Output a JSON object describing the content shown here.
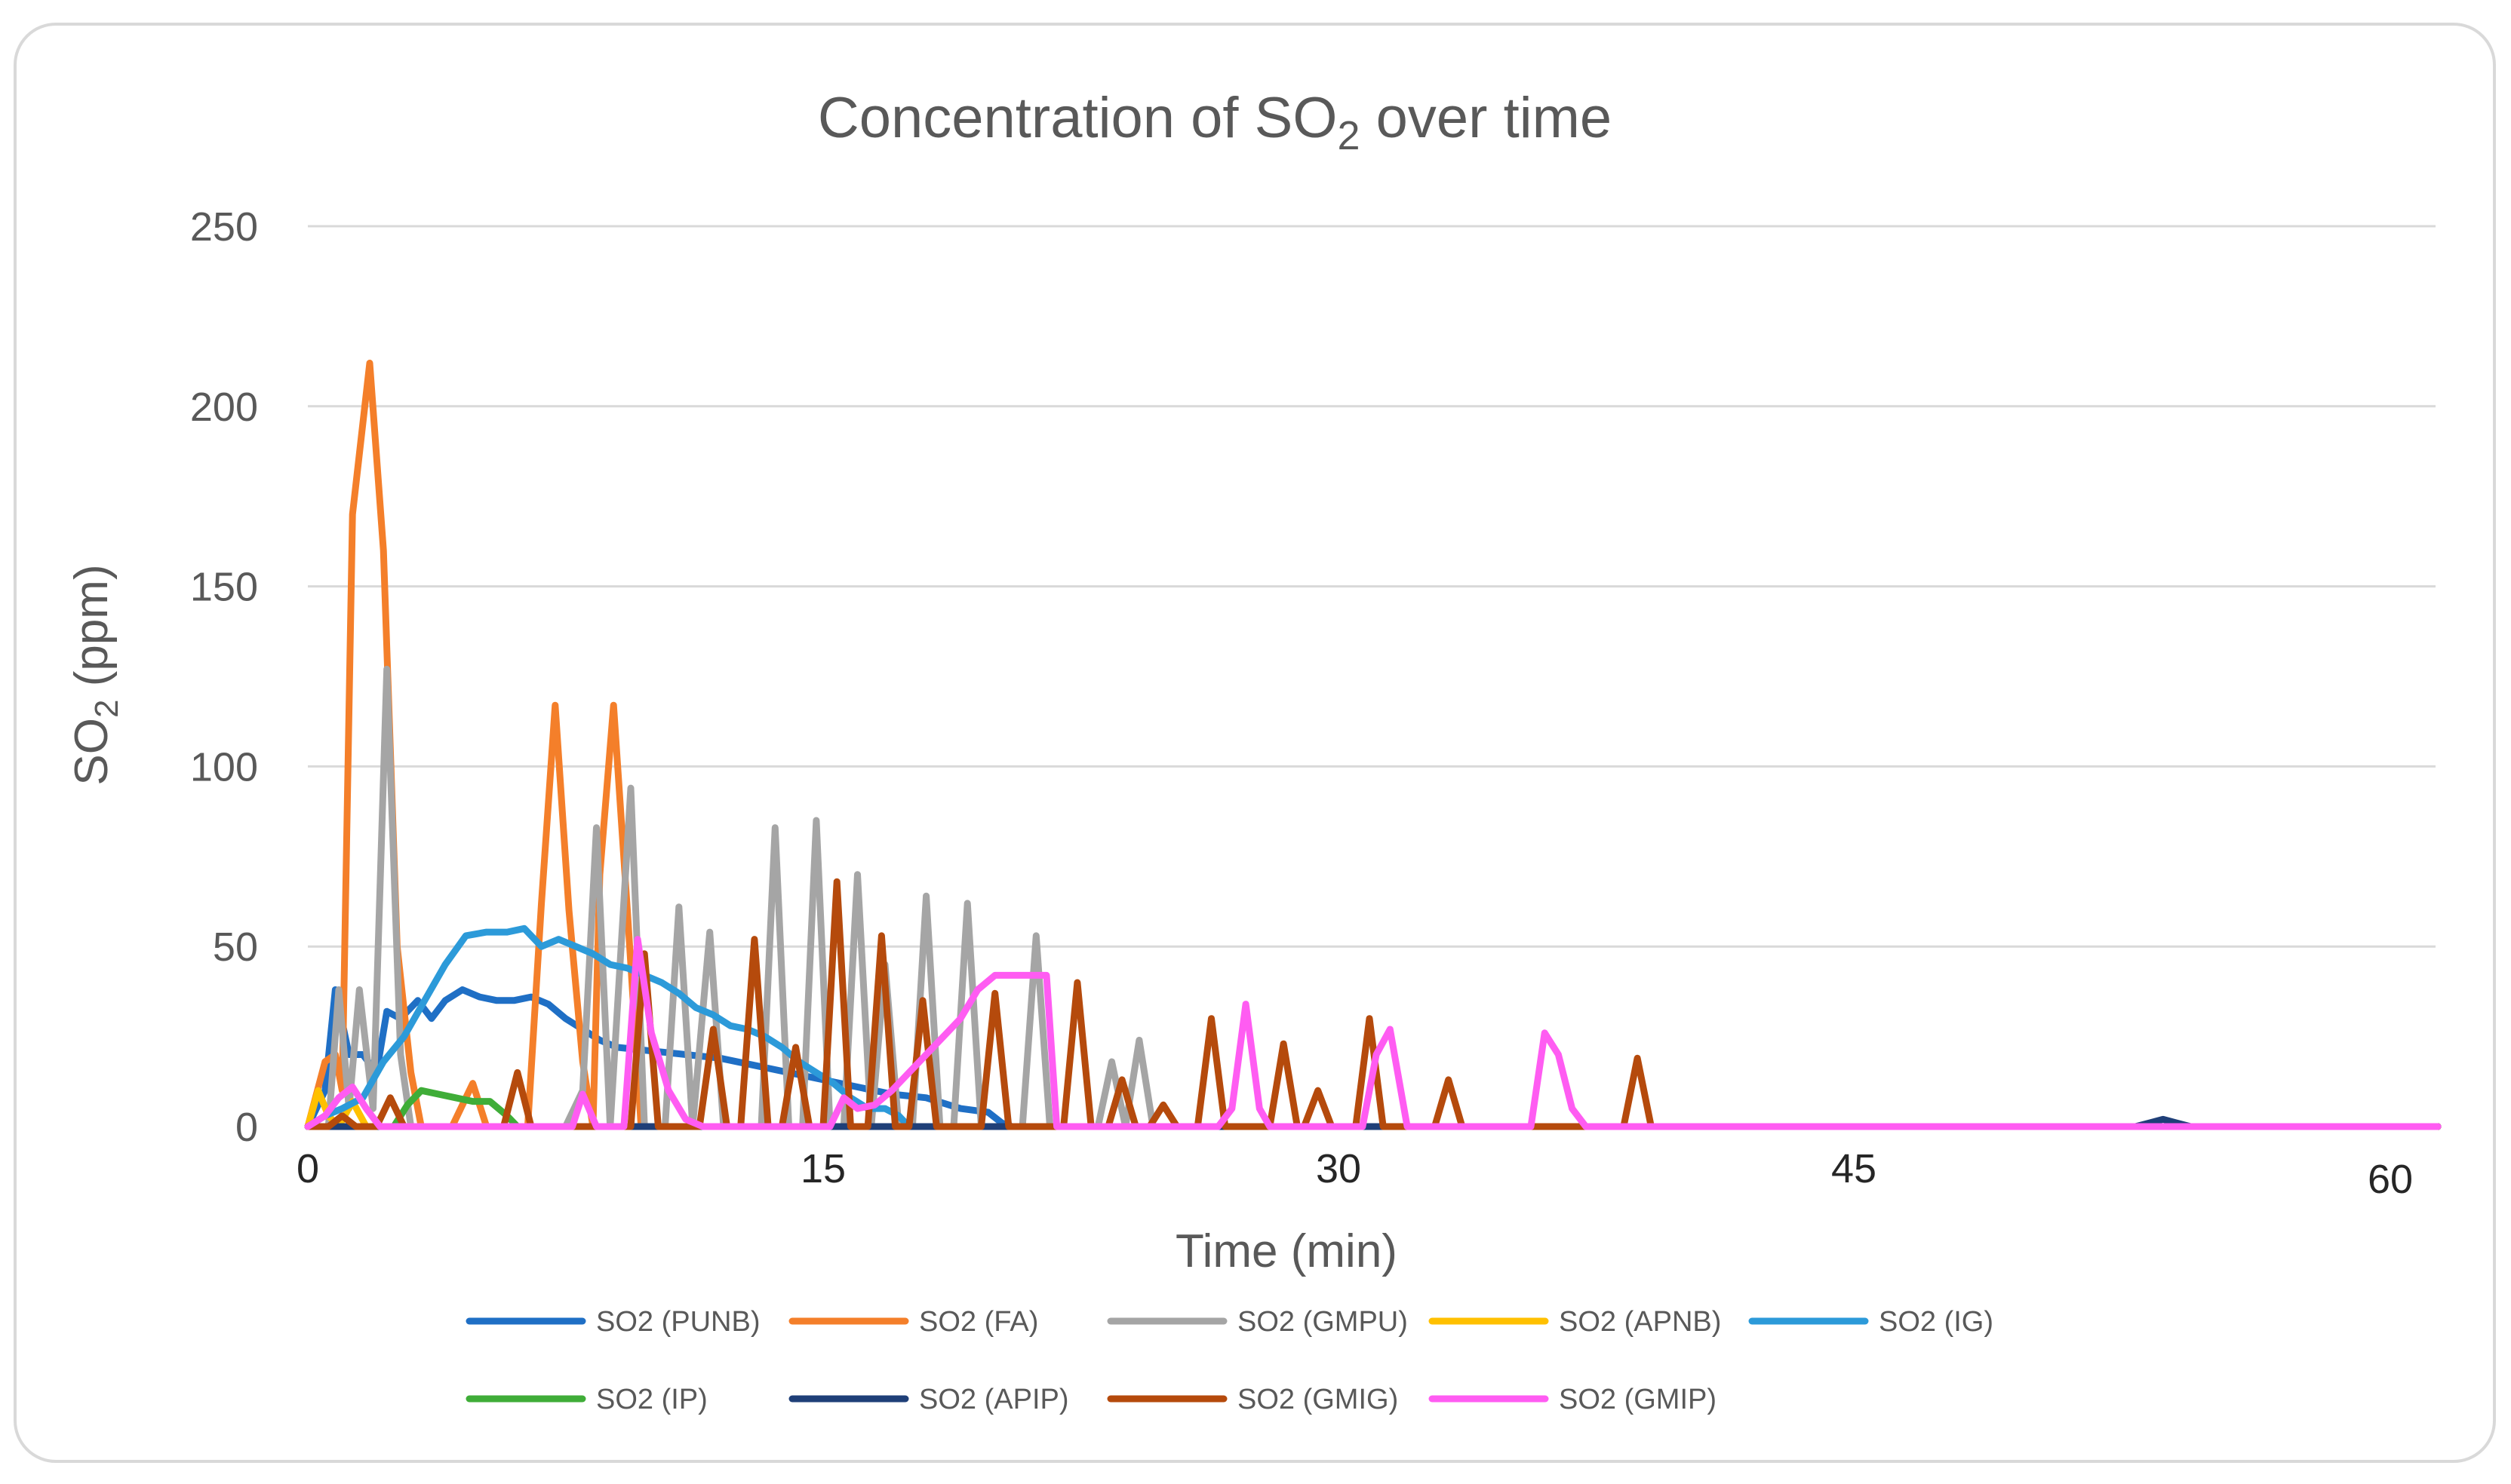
{
  "chart_data": {
    "type": "line",
    "title": "Concentration of SO",
    "title_subscript": "2",
    "title_suffix": " over time",
    "xlabel": "Time (min)",
    "ylabel": "SO",
    "ylabel_subscript": "2",
    "ylabel_suffix": " (ppm)",
    "xlim": [
      0,
      62
    ],
    "ylim": [
      0,
      250
    ],
    "x_ticks": [
      0,
      15,
      30,
      45,
      60
    ],
    "y_ticks": [
      0,
      50,
      100,
      150,
      200,
      250
    ],
    "grid": "horizontal",
    "legend_position": "bottom",
    "series": [
      {
        "name": "SO2 (PUNB)",
        "color": "#1f6fc5",
        "points": [
          [
            0,
            0
          ],
          [
            0.5,
            10
          ],
          [
            0.8,
            38
          ],
          [
            1.2,
            20
          ],
          [
            1.6,
            20
          ],
          [
            2.0,
            15
          ],
          [
            2.3,
            32
          ],
          [
            2.7,
            30
          ],
          [
            3.2,
            35
          ],
          [
            3.6,
            30
          ],
          [
            4.0,
            35
          ],
          [
            4.5,
            38
          ],
          [
            5.0,
            36
          ],
          [
            5.5,
            35
          ],
          [
            6.0,
            35
          ],
          [
            6.5,
            36
          ],
          [
            7.0,
            34
          ],
          [
            7.5,
            30
          ],
          [
            8.0,
            27
          ],
          [
            8.5,
            24
          ],
          [
            9.0,
            22
          ],
          [
            10,
            21
          ],
          [
            11,
            20
          ],
          [
            12,
            19
          ],
          [
            13,
            17
          ],
          [
            14,
            15
          ],
          [
            15,
            13
          ],
          [
            16,
            11
          ],
          [
            17,
            9
          ],
          [
            18,
            8
          ],
          [
            19,
            5
          ],
          [
            19.8,
            4
          ],
          [
            20.2,
            1
          ],
          [
            20.5,
            0
          ],
          [
            62,
            0
          ]
        ]
      },
      {
        "name": "SO2 (FA)",
        "color": "#f47f2a",
        "points": [
          [
            0,
            0
          ],
          [
            0.5,
            18
          ],
          [
            0.8,
            20
          ],
          [
            1.0,
            10
          ],
          [
            1.3,
            170
          ],
          [
            1.8,
            212
          ],
          [
            2.2,
            160
          ],
          [
            2.6,
            50
          ],
          [
            3.0,
            15
          ],
          [
            3.3,
            0
          ],
          [
            4.2,
            0
          ],
          [
            4.8,
            12
          ],
          [
            5.2,
            0
          ],
          [
            6.4,
            0
          ],
          [
            6.8,
            62
          ],
          [
            7.2,
            117
          ],
          [
            7.6,
            60
          ],
          [
            8.0,
            18
          ],
          [
            8.3,
            0
          ],
          [
            8.5,
            70
          ],
          [
            8.9,
            117
          ],
          [
            9.3,
            60
          ],
          [
            9.7,
            0
          ],
          [
            62,
            0
          ]
        ]
      },
      {
        "name": "SO2 (GMPU)",
        "color": "#a5a5a5",
        "points": [
          [
            0,
            0
          ],
          [
            0.6,
            0
          ],
          [
            0.9,
            38
          ],
          [
            1.2,
            5
          ],
          [
            1.5,
            38
          ],
          [
            1.9,
            5
          ],
          [
            2.3,
            127
          ],
          [
            2.7,
            20
          ],
          [
            3.0,
            0
          ],
          [
            7.5,
            0
          ],
          [
            8.0,
            10
          ],
          [
            8.4,
            83
          ],
          [
            8.8,
            0
          ],
          [
            9.4,
            94
          ],
          [
            9.8,
            0
          ],
          [
            10.4,
            0
          ],
          [
            10.8,
            61
          ],
          [
            11.2,
            0
          ],
          [
            11.7,
            54
          ],
          [
            12.1,
            0
          ],
          [
            13.2,
            0
          ],
          [
            13.6,
            83
          ],
          [
            14.0,
            0
          ],
          [
            14.4,
            0
          ],
          [
            14.8,
            85
          ],
          [
            15.2,
            0
          ],
          [
            15.6,
            0
          ],
          [
            16.0,
            70
          ],
          [
            16.4,
            0
          ],
          [
            16.8,
            45
          ],
          [
            17.2,
            0
          ],
          [
            17.6,
            0
          ],
          [
            18.0,
            64
          ],
          [
            18.4,
            0
          ],
          [
            18.8,
            0
          ],
          [
            19.2,
            62
          ],
          [
            19.6,
            0
          ],
          [
            20.8,
            0
          ],
          [
            21.2,
            53
          ],
          [
            21.6,
            0
          ],
          [
            23.0,
            0
          ],
          [
            23.4,
            18
          ],
          [
            23.8,
            0
          ],
          [
            24.2,
            24
          ],
          [
            24.6,
            0
          ],
          [
            62,
            0
          ]
        ]
      },
      {
        "name": "SO2 (APNB)",
        "color": "#ffc000",
        "points": [
          [
            0,
            0
          ],
          [
            0.3,
            10
          ],
          [
            0.6,
            3
          ],
          [
            0.9,
            0
          ],
          [
            1.3,
            7
          ],
          [
            1.7,
            0
          ],
          [
            62,
            0
          ]
        ]
      },
      {
        "name": "SO2 (IG)",
        "color": "#2c9ad9",
        "points": [
          [
            0,
            0
          ],
          [
            0.5,
            3
          ],
          [
            1.0,
            5
          ],
          [
            1.6,
            8
          ],
          [
            2.2,
            18
          ],
          [
            2.8,
            25
          ],
          [
            3.4,
            35
          ],
          [
            4.0,
            45
          ],
          [
            4.6,
            53
          ],
          [
            5.2,
            54
          ],
          [
            5.8,
            54
          ],
          [
            6.3,
            55
          ],
          [
            6.8,
            50
          ],
          [
            7.3,
            52
          ],
          [
            7.8,
            50
          ],
          [
            8.3,
            48
          ],
          [
            8.8,
            45
          ],
          [
            9.3,
            44
          ],
          [
            9.8,
            42
          ],
          [
            10.3,
            40
          ],
          [
            10.8,
            37
          ],
          [
            11.3,
            33
          ],
          [
            11.8,
            31
          ],
          [
            12.3,
            28
          ],
          [
            12.8,
            27
          ],
          [
            13.3,
            25
          ],
          [
            13.8,
            22
          ],
          [
            14.3,
            18
          ],
          [
            14.8,
            15
          ],
          [
            15.3,
            12
          ],
          [
            15.8,
            8
          ],
          [
            16.3,
            5
          ],
          [
            16.8,
            5
          ],
          [
            17.2,
            3
          ],
          [
            17.5,
            0
          ],
          [
            62,
            0
          ]
        ]
      },
      {
        "name": "SO2 (IP)",
        "color": "#3fad38",
        "points": [
          [
            0,
            0
          ],
          [
            2.5,
            0
          ],
          [
            2.9,
            6
          ],
          [
            3.3,
            10
          ],
          [
            3.8,
            9
          ],
          [
            4.3,
            8
          ],
          [
            4.8,
            7
          ],
          [
            5.3,
            7
          ],
          [
            5.8,
            3
          ],
          [
            6.1,
            0
          ],
          [
            62,
            0
          ]
        ]
      },
      {
        "name": "SO2 (APIP)",
        "color": "#1f3f78",
        "points": [
          [
            0,
            0
          ],
          [
            53.2,
            0
          ],
          [
            53.6,
            1
          ],
          [
            54.0,
            2
          ],
          [
            54.4,
            1
          ],
          [
            54.8,
            0
          ],
          [
            62,
            0
          ]
        ]
      },
      {
        "name": "SO2 (GMIG)",
        "color": "#b54a0c",
        "points": [
          [
            0,
            0
          ],
          [
            0.6,
            0
          ],
          [
            1.0,
            3
          ],
          [
            1.4,
            0
          ],
          [
            2.0,
            0
          ],
          [
            2.4,
            8
          ],
          [
            2.8,
            0
          ],
          [
            5.7,
            0
          ],
          [
            6.1,
            15
          ],
          [
            6.5,
            0
          ],
          [
            9.4,
            0
          ],
          [
            9.8,
            48
          ],
          [
            10.2,
            0
          ],
          [
            11.4,
            0
          ],
          [
            11.8,
            27
          ],
          [
            12.2,
            0
          ],
          [
            12.6,
            0
          ],
          [
            13.0,
            52
          ],
          [
            13.4,
            0
          ],
          [
            13.8,
            0
          ],
          [
            14.2,
            22
          ],
          [
            14.6,
            0
          ],
          [
            15.0,
            0
          ],
          [
            15.4,
            68
          ],
          [
            15.8,
            0
          ],
          [
            16.3,
            0
          ],
          [
            16.7,
            53
          ],
          [
            17.1,
            0
          ],
          [
            17.5,
            0
          ],
          [
            17.9,
            35
          ],
          [
            18.3,
            0
          ],
          [
            19.6,
            0
          ],
          [
            20.0,
            37
          ],
          [
            20.4,
            0
          ],
          [
            22.0,
            0
          ],
          [
            22.4,
            40
          ],
          [
            22.8,
            0
          ],
          [
            23.3,
            0
          ],
          [
            23.7,
            13
          ],
          [
            24.1,
            0
          ],
          [
            24.5,
            0
          ],
          [
            24.9,
            6
          ],
          [
            25.3,
            0
          ],
          [
            25.9,
            0
          ],
          [
            26.3,
            30
          ],
          [
            26.7,
            0
          ],
          [
            28.0,
            0
          ],
          [
            28.4,
            23
          ],
          [
            28.8,
            0
          ],
          [
            29.0,
            0
          ],
          [
            29.4,
            10
          ],
          [
            29.8,
            0
          ],
          [
            30.5,
            0
          ],
          [
            30.9,
            30
          ],
          [
            31.3,
            0
          ],
          [
            32.8,
            0
          ],
          [
            33.2,
            13
          ],
          [
            33.6,
            0
          ],
          [
            38.3,
            0
          ],
          [
            38.7,
            19
          ],
          [
            39.1,
            0
          ],
          [
            62,
            0
          ]
        ]
      },
      {
        "name": "SO2 (GMIP)",
        "color": "#ff5cf2",
        "points": [
          [
            0,
            0
          ],
          [
            0.5,
            3
          ],
          [
            0.9,
            8
          ],
          [
            1.3,
            11
          ],
          [
            1.7,
            5
          ],
          [
            2.1,
            0
          ],
          [
            7.7,
            0
          ],
          [
            8.0,
            9
          ],
          [
            8.4,
            0
          ],
          [
            9.2,
            0
          ],
          [
            9.6,
            52
          ],
          [
            10.0,
            26
          ],
          [
            10.5,
            10
          ],
          [
            11.0,
            2
          ],
          [
            11.5,
            0
          ],
          [
            15.2,
            0
          ],
          [
            15.6,
            8
          ],
          [
            16.0,
            5
          ],
          [
            16.5,
            6
          ],
          [
            17.0,
            10
          ],
          [
            17.5,
            15
          ],
          [
            18.0,
            20
          ],
          [
            18.5,
            25
          ],
          [
            19.0,
            30
          ],
          [
            19.5,
            38
          ],
          [
            20.0,
            42
          ],
          [
            20.5,
            42
          ],
          [
            21.0,
            42
          ],
          [
            21.5,
            42
          ],
          [
            21.8,
            0
          ],
          [
            26.5,
            0
          ],
          [
            26.9,
            5
          ],
          [
            27.3,
            34
          ],
          [
            27.7,
            5
          ],
          [
            28.0,
            0
          ],
          [
            30.7,
            0
          ],
          [
            31.1,
            20
          ],
          [
            31.5,
            27
          ],
          [
            32.0,
            0
          ],
          [
            35.6,
            0
          ],
          [
            36.0,
            26
          ],
          [
            36.4,
            20
          ],
          [
            36.8,
            5
          ],
          [
            37.2,
            0
          ],
          [
            62,
            0
          ]
        ]
      }
    ]
  }
}
